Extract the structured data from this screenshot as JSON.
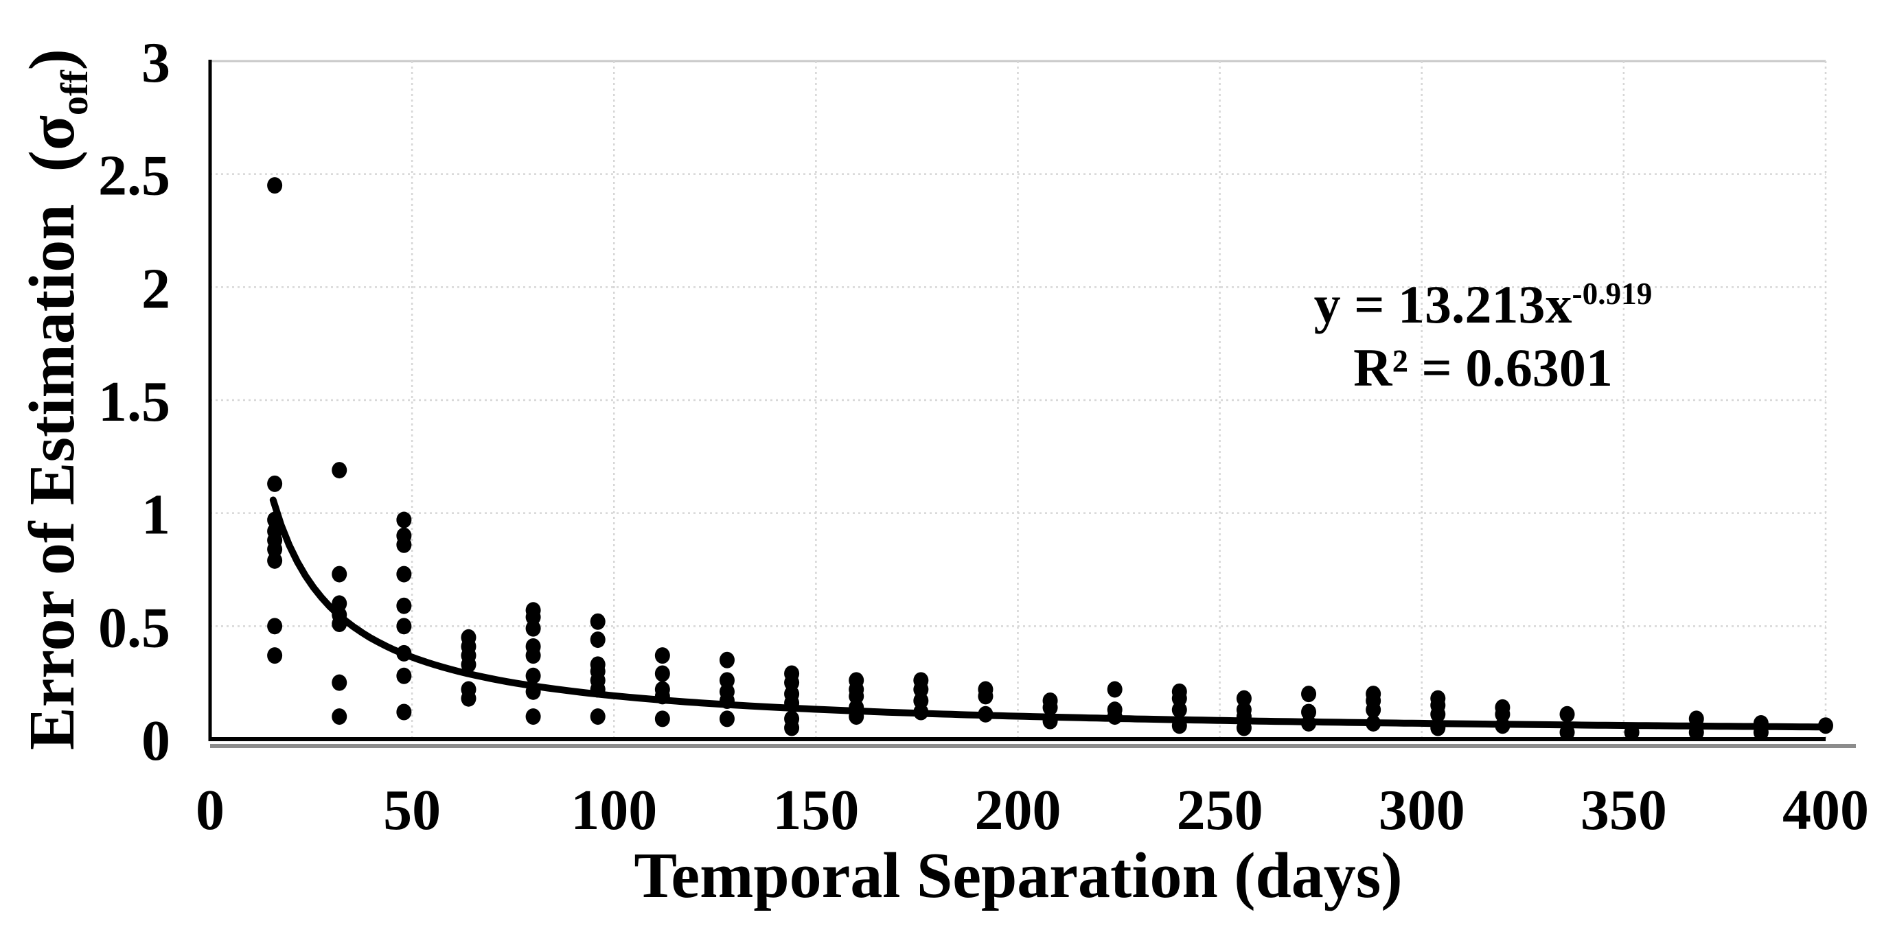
{
  "page": {
    "background_color": "#ffffff",
    "text_color": "#000000"
  },
  "chart_data": {
    "type": "scatter",
    "title": "",
    "xlabel": "Temporal Separation (days)",
    "ylabel_parts": {
      "prefix": "Error of Estimation  (σ",
      "subscript": "off",
      "suffix": ")"
    },
    "xlim": [
      0,
      400
    ],
    "ylim": [
      0,
      3
    ],
    "x_ticks": [
      0,
      50,
      100,
      150,
      200,
      250,
      300,
      350,
      400
    ],
    "y_ticks": [
      0,
      0.5,
      1,
      1.5,
      2,
      2.5,
      3
    ],
    "y_tick_labels": [
      "0",
      "0.5",
      "1",
      "1.5",
      "2",
      "2.5",
      "3"
    ],
    "grid": true,
    "legend": "none",
    "marker_color": "#000000",
    "gridline_color": "#d6d6d6",
    "axis_color": "#000000",
    "axis_shadow_color": "#8c8c8c",
    "clusters": [
      {
        "x": 16,
        "ys": [
          2.45,
          1.13,
          0.97,
          0.92,
          0.88,
          0.84,
          0.79,
          0.5,
          0.37
        ]
      },
      {
        "x": 32,
        "ys": [
          1.19,
          0.73,
          0.6,
          0.55,
          0.51,
          0.25,
          0.1
        ]
      },
      {
        "x": 48,
        "ys": [
          0.97,
          0.9,
          0.86,
          0.73,
          0.59,
          0.5,
          0.38,
          0.28,
          0.12
        ]
      },
      {
        "x": 64,
        "ys": [
          0.45,
          0.41,
          0.37,
          0.33,
          0.22,
          0.18
        ]
      },
      {
        "x": 80,
        "ys": [
          0.57,
          0.54,
          0.49,
          0.41,
          0.37,
          0.28,
          0.21,
          0.1
        ]
      },
      {
        "x": 96,
        "ys": [
          0.52,
          0.44,
          0.33,
          0.3,
          0.26,
          0.22,
          0.1
        ]
      },
      {
        "x": 112,
        "ys": [
          0.37,
          0.29,
          0.22,
          0.19,
          0.09
        ]
      },
      {
        "x": 128,
        "ys": [
          0.35,
          0.26,
          0.21,
          0.17,
          0.09
        ]
      },
      {
        "x": 144,
        "ys": [
          0.29,
          0.25,
          0.2,
          0.16,
          0.09,
          0.05
        ]
      },
      {
        "x": 160,
        "ys": [
          0.26,
          0.22,
          0.19,
          0.14,
          0.1
        ]
      },
      {
        "x": 176,
        "ys": [
          0.26,
          0.22,
          0.17,
          0.12
        ]
      },
      {
        "x": 192,
        "ys": [
          0.22,
          0.19,
          0.11
        ]
      },
      {
        "x": 208,
        "ys": [
          0.17,
          0.14,
          0.08
        ]
      },
      {
        "x": 224,
        "ys": [
          0.22,
          0.13,
          0.1
        ]
      },
      {
        "x": 240,
        "ys": [
          0.21,
          0.18,
          0.13,
          0.06
        ]
      },
      {
        "x": 256,
        "ys": [
          0.18,
          0.13,
          0.1,
          0.05
        ]
      },
      {
        "x": 272,
        "ys": [
          0.2,
          0.12,
          0.07
        ]
      },
      {
        "x": 288,
        "ys": [
          0.2,
          0.17,
          0.13,
          0.07
        ]
      },
      {
        "x": 304,
        "ys": [
          0.18,
          0.15,
          0.11,
          0.05
        ]
      },
      {
        "x": 320,
        "ys": [
          0.14,
          0.11,
          0.06
        ]
      },
      {
        "x": 336,
        "ys": [
          0.11,
          0.03
        ]
      },
      {
        "x": 352,
        "ys": [
          0.03
        ]
      },
      {
        "x": 368,
        "ys": [
          0.09,
          0.03
        ]
      },
      {
        "x": 384,
        "ys": [
          0.07,
          0.03
        ]
      },
      {
        "x": 400,
        "ys": [
          0.06
        ]
      },
      {
        "x": 16,
        "ys": [
          2.45
        ]
      }
    ],
    "trendline": {
      "type": "power",
      "coefficient": 13.213,
      "exponent": -0.919,
      "x_start": 15.6,
      "x_end": 400,
      "equation_base": "y = 13.213x",
      "equation_exponent": "-0.919",
      "r_squared_label": "R² = 0.6301"
    }
  }
}
